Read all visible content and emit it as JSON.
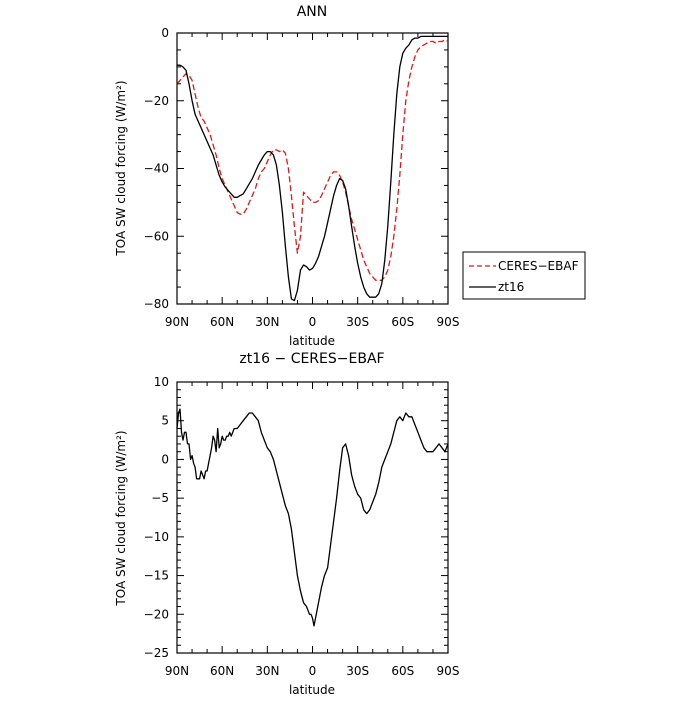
{
  "chart_data": [
    {
      "type": "line",
      "title": "ANN",
      "xlabel": "latitude",
      "ylabel": "TOA SW cloud forcing (W/m²)",
      "ylim": [
        -80,
        0
      ],
      "xlim": [
        90,
        -90
      ],
      "x_ticks": [
        90,
        60,
        30,
        0,
        -30,
        -60,
        -90
      ],
      "x_tick_labels": [
        "90N",
        "60N",
        "30N",
        "0",
        "30S",
        "60S",
        "90S"
      ],
      "y_ticks": [
        0,
        -20,
        -40,
        -60,
        -80
      ],
      "y_tick_labels": [
        "0",
        "−20",
        "−40",
        "−60",
        "−80"
      ],
      "legend_position": "right",
      "series": [
        {
          "name": "CERES−EBAF",
          "color": "#e8151b",
          "dash": "dashed",
          "x": [
            90,
            88,
            86,
            84,
            82,
            80,
            78,
            76,
            74,
            72,
            70,
            68,
            66,
            64,
            62,
            60,
            58,
            56,
            54,
            52,
            50,
            48,
            46,
            44,
            42,
            40,
            38,
            36,
            34,
            32,
            30,
            28,
            26,
            24,
            22,
            20,
            18,
            16,
            14,
            12,
            10,
            8,
            6,
            4,
            2,
            0,
            -2,
            -4,
            -6,
            -8,
            -10,
            -12,
            -14,
            -16,
            -18,
            -20,
            -22,
            -24,
            -26,
            -28,
            -30,
            -32,
            -34,
            -36,
            -38,
            -40,
            -42,
            -44,
            -46,
            -48,
            -50,
            -52,
            -54,
            -56,
            -58,
            -60,
            -62,
            -64,
            -66,
            -68,
            -70,
            -72,
            -74,
            -76,
            -78,
            -80,
            -82,
            -84,
            -86,
            -88,
            -90
          ],
          "values": [
            -15,
            -14,
            -13,
            -12,
            -12.5,
            -14,
            -18,
            -22,
            -25,
            -26,
            -28,
            -30,
            -33,
            -36,
            -40,
            -43,
            -45,
            -47,
            -49,
            -51,
            -53,
            -53.5,
            -53.5,
            -52,
            -50,
            -48,
            -46,
            -43,
            -41,
            -40,
            -38,
            -36,
            -34.5,
            -34.5,
            -35,
            -34.5,
            -35.5,
            -40,
            -48,
            -57,
            -65,
            -60,
            -47,
            -48,
            -49,
            -50,
            -50,
            -49.5,
            -48,
            -46,
            -44,
            -42,
            -41,
            -41,
            -42,
            -44,
            -47,
            -51,
            -55,
            -58,
            -61,
            -64,
            -67,
            -69,
            -71,
            -72,
            -73,
            -73,
            -73,
            -72,
            -70,
            -66,
            -60,
            -52,
            -42,
            -30,
            -20,
            -14,
            -10,
            -7,
            -5,
            -4,
            -3.5,
            -3,
            -2.5,
            -2.5,
            -3,
            -2.5,
            -2.5,
            -2,
            -2.5
          ]
        },
        {
          "name": "zt16",
          "color": "#000000",
          "dash": "solid",
          "x": [
            90,
            88,
            86,
            84,
            82,
            80,
            78,
            76,
            74,
            72,
            70,
            68,
            66,
            64,
            62,
            60,
            58,
            56,
            54,
            52,
            50,
            48,
            46,
            44,
            42,
            40,
            38,
            36,
            34,
            32,
            30,
            28,
            26,
            24,
            22,
            20,
            18,
            16,
            14,
            12,
            10,
            8,
            6,
            4,
            2,
            0,
            -2,
            -4,
            -6,
            -8,
            -10,
            -12,
            -14,
            -16,
            -18,
            -20,
            -22,
            -24,
            -26,
            -28,
            -30,
            -32,
            -34,
            -36,
            -38,
            -40,
            -42,
            -44,
            -46,
            -48,
            -50,
            -52,
            -54,
            -56,
            -58,
            -60,
            -62,
            -64,
            -66,
            -68,
            -70,
            -72,
            -74,
            -76,
            -78,
            -80,
            -82,
            -84,
            -86,
            -88,
            -90
          ],
          "values": [
            -9.5,
            -9.5,
            -10,
            -11,
            -15,
            -20,
            -24,
            -26,
            -28,
            -30,
            -32,
            -34,
            -36,
            -39,
            -42,
            -44,
            -45.5,
            -46.5,
            -47.5,
            -48.5,
            -48.5,
            -48,
            -47.5,
            -46,
            -44.5,
            -43,
            -41,
            -39,
            -37.5,
            -36,
            -35,
            -35,
            -36,
            -39,
            -45,
            -53,
            -63,
            -72,
            -78.5,
            -79,
            -76,
            -70,
            -68.5,
            -69,
            -70,
            -69.5,
            -68,
            -66,
            -63,
            -60,
            -56,
            -52,
            -48,
            -45,
            -43,
            -43.5,
            -46,
            -51,
            -57,
            -63,
            -68,
            -72,
            -75,
            -77,
            -78,
            -78,
            -78,
            -77,
            -74,
            -67,
            -57,
            -44,
            -30,
            -18,
            -10,
            -6,
            -4.5,
            -3.5,
            -2,
            -1.5,
            -1.5,
            -1,
            -1,
            -1,
            -1,
            -1,
            -1,
            -1,
            -1,
            -1,
            -1
          ]
        }
      ]
    },
    {
      "type": "line",
      "title": "zt16 − CERES−EBAF",
      "xlabel": "latitude",
      "ylabel": "TOA SW cloud forcing (W/m²)",
      "ylim": [
        -25,
        10
      ],
      "xlim": [
        90,
        -90
      ],
      "x_ticks": [
        90,
        60,
        30,
        0,
        -30,
        -60,
        -90
      ],
      "x_tick_labels": [
        "90N",
        "60N",
        "30N",
        "0",
        "30S",
        "60S",
        "90S"
      ],
      "y_ticks": [
        10,
        5,
        0,
        -5,
        -10,
        -15,
        -20,
        -25
      ],
      "y_tick_labels": [
        "10",
        "5",
        "0",
        "−5",
        "−10",
        "−15",
        "−20",
        "−25"
      ],
      "series": [
        {
          "color": "#000000",
          "dash": "solid",
          "x": [
            90,
            89,
            88,
            87,
            86,
            85,
            84,
            83,
            82,
            81,
            80,
            79,
            78,
            77,
            76,
            75,
            74,
            73,
            72,
            71,
            70,
            69,
            68,
            67,
            66,
            65,
            64,
            63,
            62,
            61,
            60,
            59,
            58,
            57,
            56,
            55,
            54,
            52,
            50,
            48,
            46,
            44,
            42,
            40,
            38,
            36,
            34,
            32,
            30,
            28,
            26,
            24,
            22,
            20,
            18,
            16,
            14,
            12,
            10,
            8,
            6,
            4,
            2,
            1,
            0,
            -1,
            -2,
            -4,
            -6,
            -8,
            -10,
            -12,
            -14,
            -16,
            -18,
            -20,
            -22,
            -24,
            -26,
            -28,
            -30,
            -32,
            -34,
            -36,
            -38,
            -40,
            -42,
            -44,
            -46,
            -48,
            -50,
            -52,
            -54,
            -56,
            -58,
            -60,
            -62,
            -64,
            -66,
            -68,
            -70,
            -72,
            -74,
            -76,
            -78,
            -80,
            -82,
            -84,
            -86,
            -88,
            -90
          ],
          "values": [
            4,
            6,
            6.5,
            3.5,
            2.5,
            3.5,
            3.5,
            2,
            2,
            0,
            0.5,
            -0.5,
            -1,
            -2.5,
            -2.5,
            -2.5,
            -1.5,
            -2,
            -2.5,
            -1.5,
            -1.5,
            -0.5,
            0.5,
            1.5,
            3,
            2.5,
            1,
            4,
            1.5,
            2,
            3,
            2.5,
            2.5,
            3,
            3,
            3.5,
            3,
            4,
            4,
            4.5,
            5,
            5.5,
            6,
            6,
            5.5,
            5,
            3.5,
            2.5,
            1.5,
            1,
            0,
            -1.5,
            -3,
            -4.5,
            -6,
            -7,
            -9,
            -12,
            -15,
            -17,
            -18.5,
            -19,
            -20,
            -20,
            -20.5,
            -21.5,
            -20.5,
            -18.5,
            -16.5,
            -15,
            -14,
            -11,
            -8,
            -5,
            -1.5,
            1.5,
            2,
            0.5,
            -2,
            -3.5,
            -4.5,
            -5,
            -6.5,
            -7,
            -6.5,
            -5.5,
            -4.5,
            -3,
            -1,
            0,
            1,
            2,
            3.5,
            5,
            5.5,
            5,
            6,
            5.5,
            5.5,
            4.5,
            3.5,
            2.5,
            1.5,
            1,
            1,
            1,
            1.5,
            2,
            1.5,
            1,
            2
          ]
        }
      ]
    }
  ]
}
